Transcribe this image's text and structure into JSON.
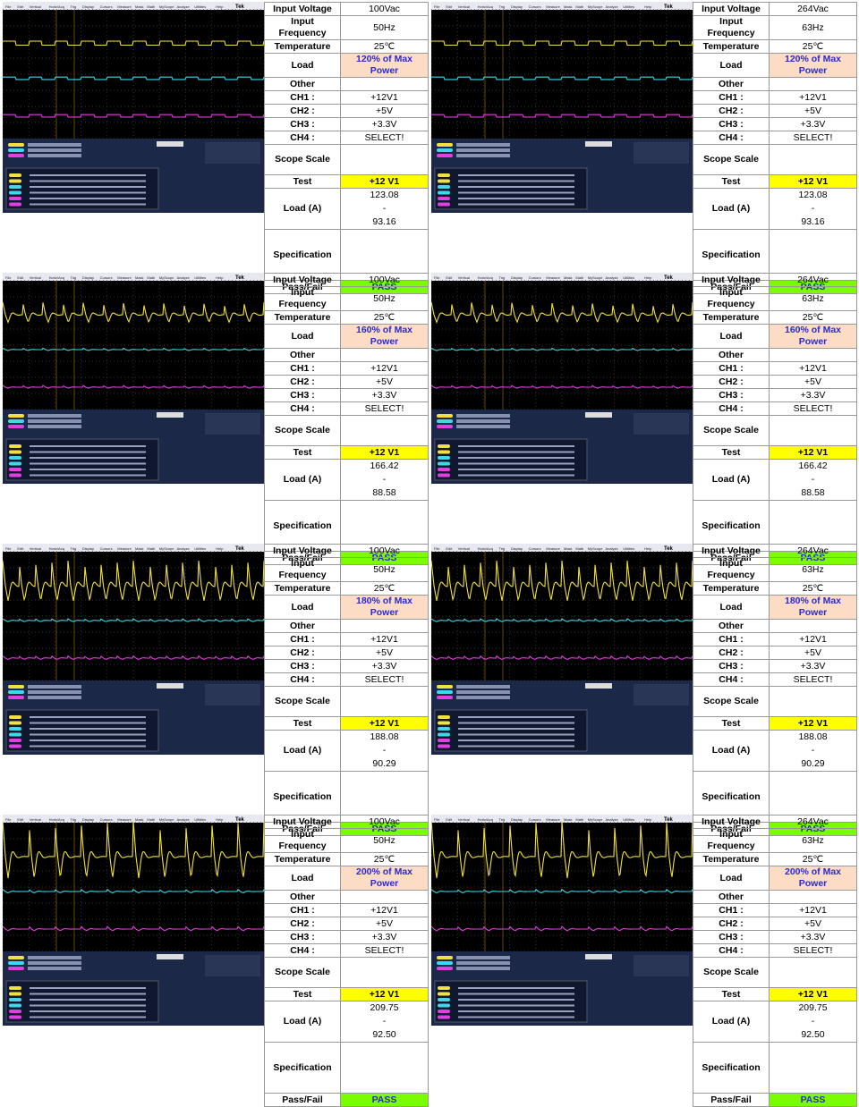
{
  "scope_brand": "Tek",
  "scope_menu": [
    "File",
    "Edit",
    "Vertical",
    "Horiz/Acq",
    "Trig",
    "Display",
    "Cursors",
    "Measure",
    "Mask",
    "Math",
    "MyScope",
    "Analyze",
    "Utilities",
    "Help"
  ],
  "panels": [
    {
      "rows": [
        {
          "label": "Input Voltage",
          "value": "100Vac"
        },
        {
          "label": "Input Frequency",
          "value": "50Hz"
        },
        {
          "label": "Temperature",
          "value": "25℃"
        },
        {
          "label": "Load",
          "value": "120% of Max Power"
        },
        {
          "label": "Other"
        },
        {
          "label": "CH1 :",
          "value": "+12V1"
        },
        {
          "label": "CH2 :",
          "value": "+5V"
        },
        {
          "label": "CH3 :",
          "value": "+3.3V"
        },
        {
          "label": "CH4 :",
          "value": "SELECT!"
        },
        {
          "label": "Scope Scale"
        },
        {
          "label": "Test",
          "value": "+12 V1"
        },
        {
          "label": "Load (A)",
          "value": [
            "123.08",
            "-",
            "93.16"
          ]
        },
        {
          "label": "Specification"
        },
        {
          "label": "Pass/Fail",
          "value": "PASS"
        }
      ]
    },
    {
      "rows": [
        {
          "label": "Input Voltage",
          "value": "264Vac"
        },
        {
          "label": "Input Frequency",
          "value": "63Hz"
        },
        {
          "label": "Temperature",
          "value": "25℃"
        },
        {
          "label": "Load",
          "value": "120% of Max Power"
        },
        {
          "label": "Other"
        },
        {
          "label": "CH1 :",
          "value": "+12V1"
        },
        {
          "label": "CH2 :",
          "value": "+5V"
        },
        {
          "label": "CH3 :",
          "value": "+3.3V"
        },
        {
          "label": "CH4 :",
          "value": "SELECT!"
        },
        {
          "label": "Scope Scale"
        },
        {
          "label": "Test",
          "value": "+12 V1"
        },
        {
          "label": "Load (A)",
          "value": [
            "123.08",
            "-",
            "93.16"
          ]
        },
        {
          "label": "Specification"
        },
        {
          "label": "Pass/Fail",
          "value": "PASS"
        }
      ]
    },
    {
      "rows": [
        {
          "label": "Input Voltage",
          "value": "100Vac"
        },
        {
          "label": "Input Frequency",
          "value": "50Hz"
        },
        {
          "label": "Temperature",
          "value": "25℃"
        },
        {
          "label": "Load",
          "value": "160% of Max Power"
        },
        {
          "label": "Other"
        },
        {
          "label": "CH1 :",
          "value": "+12V1"
        },
        {
          "label": "CH2 :",
          "value": "+5V"
        },
        {
          "label": "CH3 :",
          "value": "+3.3V"
        },
        {
          "label": "CH4 :",
          "value": "SELECT!"
        },
        {
          "label": "Scope Scale"
        },
        {
          "label": "Test",
          "value": "+12 V1"
        },
        {
          "label": "Load (A)",
          "value": [
            "166.42",
            "-",
            "88.58"
          ]
        },
        {
          "label": "Specification"
        },
        {
          "label": "Pass/Fail",
          "value": "PASS"
        }
      ]
    },
    {
      "rows": [
        {
          "label": "Input Voltage",
          "value": "264Vac"
        },
        {
          "label": "Input Frequency",
          "value": "63Hz"
        },
        {
          "label": "Temperature",
          "value": "25℃"
        },
        {
          "label": "Load",
          "value": "160% of Max Power"
        },
        {
          "label": "Other"
        },
        {
          "label": "CH1 :",
          "value": "+12V1"
        },
        {
          "label": "CH2 :",
          "value": "+5V"
        },
        {
          "label": "CH3 :",
          "value": "+3.3V"
        },
        {
          "label": "CH4 :",
          "value": "SELECT!"
        },
        {
          "label": "Scope Scale"
        },
        {
          "label": "Test",
          "value": "+12 V1"
        },
        {
          "label": "Load (A)",
          "value": [
            "166.42",
            "-",
            "88.58"
          ]
        },
        {
          "label": "Specification"
        },
        {
          "label": "Pass/Fail",
          "value": "PASS"
        }
      ]
    },
    {
      "rows": [
        {
          "label": "Input Voltage",
          "value": "100Vac"
        },
        {
          "label": "Input Frequency",
          "value": "50Hz"
        },
        {
          "label": "Temperature",
          "value": "25℃"
        },
        {
          "label": "Load",
          "value": "180% of Max Power"
        },
        {
          "label": "Other"
        },
        {
          "label": "CH1 :",
          "value": "+12V1"
        },
        {
          "label": "CH2 :",
          "value": "+5V"
        },
        {
          "label": "CH3 :",
          "value": "+3.3V"
        },
        {
          "label": "CH4 :",
          "value": "SELECT!"
        },
        {
          "label": "Scope Scale"
        },
        {
          "label": "Test",
          "value": "+12 V1"
        },
        {
          "label": "Load (A)",
          "value": [
            "188.08",
            "-",
            "90.29"
          ]
        },
        {
          "label": "Specification"
        },
        {
          "label": "Pass/Fail",
          "value": "PASS"
        }
      ]
    },
    {
      "rows": [
        {
          "label": "Input Voltage",
          "value": "264Vac"
        },
        {
          "label": "Input Frequency",
          "value": "63Hz"
        },
        {
          "label": "Temperature",
          "value": "25℃"
        },
        {
          "label": "Load",
          "value": "180% of Max Power"
        },
        {
          "label": "Other"
        },
        {
          "label": "CH1 :",
          "value": "+12V1"
        },
        {
          "label": "CH2 :",
          "value": "+5V"
        },
        {
          "label": "CH3 :",
          "value": "+3.3V"
        },
        {
          "label": "CH4 :",
          "value": "SELECT!"
        },
        {
          "label": "Scope Scale"
        },
        {
          "label": "Test",
          "value": "+12 V1"
        },
        {
          "label": "Load (A)",
          "value": [
            "188.08",
            "-",
            "90.29"
          ]
        },
        {
          "label": "Specification"
        },
        {
          "label": "Pass/Fail",
          "value": "PASS"
        }
      ]
    },
    {
      "rows": [
        {
          "label": "Input Voltage",
          "value": "100Vac"
        },
        {
          "label": "Input Frequency",
          "value": "50Hz"
        },
        {
          "label": "Temperature",
          "value": "25℃"
        },
        {
          "label": "Load",
          "value": "200% of Max Power"
        },
        {
          "label": "Other"
        },
        {
          "label": "CH1 :",
          "value": "+12V1"
        },
        {
          "label": "CH2 :",
          "value": "+5V"
        },
        {
          "label": "CH3 :",
          "value": "+3.3V"
        },
        {
          "label": "CH4 :",
          "value": "SELECT!"
        },
        {
          "label": "Scope Scale"
        },
        {
          "label": "Test",
          "value": "+12 V1"
        },
        {
          "label": "Load (A)",
          "value": [
            "209.75",
            "-",
            "92.50"
          ]
        },
        {
          "label": "Specification"
        },
        {
          "label": "Pass/Fail",
          "value": "PASS"
        }
      ]
    },
    {
      "rows": [
        {
          "label": "Input Voltage",
          "value": "264Vac"
        },
        {
          "label": "Input Frequency",
          "value": "63Hz"
        },
        {
          "label": "Temperature",
          "value": "25℃"
        },
        {
          "label": "Load",
          "value": "200% of Max Power"
        },
        {
          "label": "Other"
        },
        {
          "label": "CH1 :",
          "value": "+12V1"
        },
        {
          "label": "CH2 :",
          "value": "+5V"
        },
        {
          "label": "CH3 :",
          "value": "+3.3V"
        },
        {
          "label": "CH4 :",
          "value": "SELECT!"
        },
        {
          "label": "Scope Scale"
        },
        {
          "label": "Test",
          "value": "+12 V1"
        },
        {
          "label": "Load (A)",
          "value": [
            "209.75",
            "-",
            "92.50"
          ]
        },
        {
          "label": "Specification"
        },
        {
          "label": "Pass/Fail",
          "value": "PASS"
        }
      ]
    }
  ]
}
